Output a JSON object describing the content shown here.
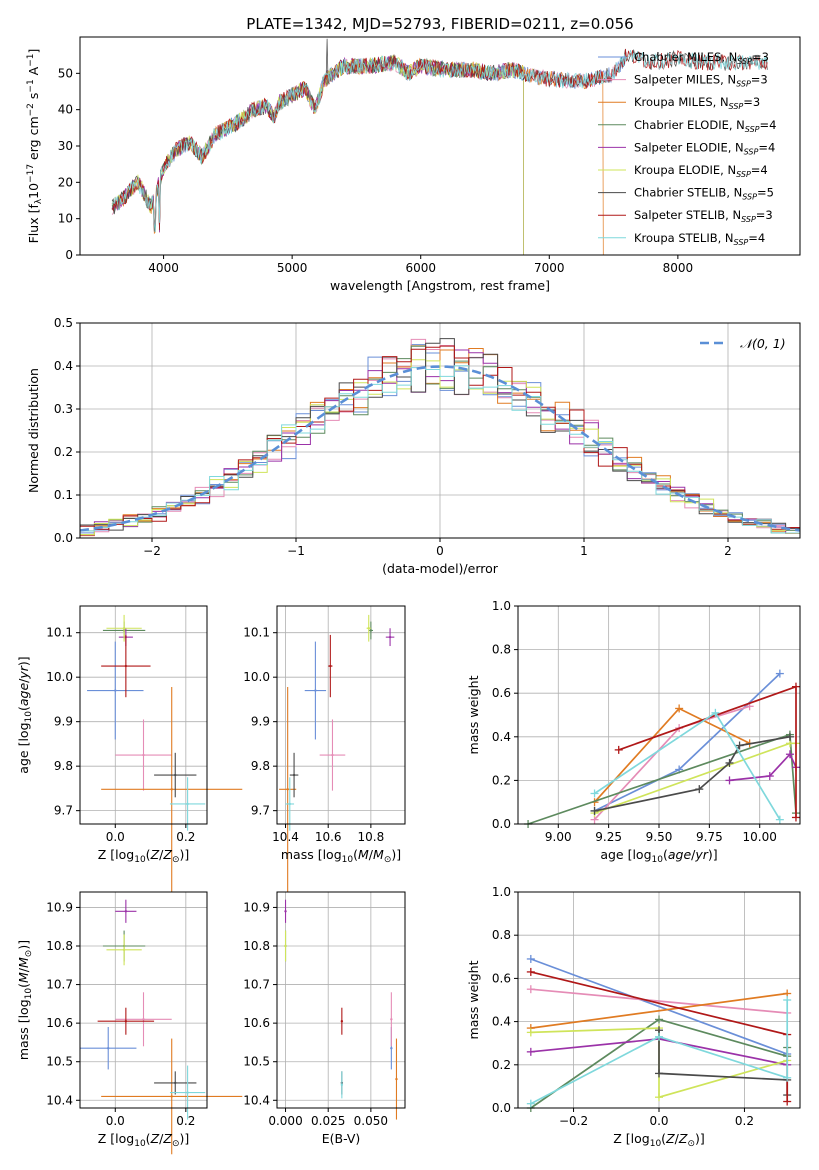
{
  "title": "PLATE=1342, MJD=52793, FIBERID=0211, z=0.056",
  "colors": {
    "chabrier_miles": "#6a8fd8",
    "salpeter_miles": "#e58cb6",
    "kroupa_miles": "#e07b22",
    "chabrier_elodie": "#5d8a5e",
    "salpeter_elodie": "#9b32a8",
    "kroupa_elodie": "#cfe45a",
    "chabrier_stelib": "#4a4a4a",
    "salpeter_stelib": "#b01818",
    "kroupa_stelib": "#7fd8dc"
  },
  "chart_data": [
    {
      "id": "spectrum",
      "type": "line",
      "xlabel": "wavelength [Angstrom, rest frame]",
      "ylabel": "Flux [f_λ10^-17 erg cm^-2 s^-1 A^-1]",
      "xlim": [
        3350,
        8950
      ],
      "ylim": [
        0,
        60
      ],
      "xticks": [
        "4000",
        "5000",
        "6000",
        "7000",
        "8000"
      ],
      "yticks": [
        "0",
        "10",
        "20",
        "30",
        "40",
        "50"
      ],
      "legend_position": "right",
      "series": [
        {
          "name": "Chabrier MILES, N_SSP=3",
          "color": "#6a8fd8",
          "x_range": [
            3600,
            7600
          ]
        },
        {
          "name": "Salpeter MILES, N_SSP=3",
          "color": "#e58cb6",
          "x_range": [
            3600,
            7600
          ]
        },
        {
          "name": "Kroupa MILES, N_SSP=3",
          "color": "#e07b22",
          "x_range": [
            3600,
            7420
          ]
        },
        {
          "name": "Chabrier ELODIE, N_SSP=4",
          "color": "#5d8a5e",
          "x_range": [
            3600,
            6800
          ]
        },
        {
          "name": "Salpeter ELODIE, N_SSP=4",
          "color": "#9b32a8",
          "x_range": [
            3600,
            6800
          ]
        },
        {
          "name": "Kroupa ELODIE, N_SSP=4",
          "color": "#cfe45a",
          "x_range": [
            3600,
            6800
          ]
        },
        {
          "name": "Chabrier STELIB, N_SSP=5",
          "color": "#4a4a4a",
          "x_range": [
            3600,
            8700
          ]
        },
        {
          "name": "Salpeter STELIB, N_SSP=3",
          "color": "#b01818",
          "x_range": [
            3600,
            8700
          ]
        },
        {
          "name": "Kroupa STELIB, N_SSP=4",
          "color": "#7fd8dc",
          "x_range": [
            3600,
            8700
          ]
        }
      ],
      "continuum": [
        [
          3600,
          13
        ],
        [
          3700,
          16
        ],
        [
          3800,
          20
        ],
        [
          3850,
          17
        ],
        [
          3900,
          13
        ],
        [
          3950,
          18
        ],
        [
          4000,
          24
        ],
        [
          4100,
          29
        ],
        [
          4200,
          31
        ],
        [
          4300,
          27
        ],
        [
          4400,
          33
        ],
        [
          4500,
          35
        ],
        [
          4600,
          37
        ],
        [
          4700,
          40
        ],
        [
          4800,
          41
        ],
        [
          4860,
          38
        ],
        [
          4900,
          42
        ],
        [
          5000,
          44
        ],
        [
          5100,
          46
        ],
        [
          5180,
          40
        ],
        [
          5250,
          48
        ],
        [
          5400,
          52
        ],
        [
          5600,
          52
        ],
        [
          5800,
          53
        ],
        [
          5900,
          50
        ],
        [
          6000,
          52
        ],
        [
          6200,
          51
        ],
        [
          6400,
          51
        ],
        [
          6560,
          50
        ],
        [
          6700,
          51
        ],
        [
          6900,
          49
        ],
        [
          7100,
          48
        ],
        [
          7300,
          48
        ],
        [
          7500,
          50
        ],
        [
          7600,
          55
        ],
        [
          7800,
          53
        ],
        [
          8000,
          54
        ],
        [
          8200,
          53
        ],
        [
          8400,
          53
        ],
        [
          8600,
          53
        ],
        [
          8700,
          53
        ]
      ],
      "features": [
        {
          "x": 3933,
          "y": 5,
          "name": "Ca K dip"
        },
        {
          "x": 3968,
          "y": 7,
          "name": "Ca H dip"
        },
        {
          "x": 5270,
          "y": 62,
          "name": "spike"
        },
        {
          "x": 6800,
          "y": 0,
          "name": "ELODIE cutoff"
        },
        {
          "x": 7420,
          "y": 0,
          "name": "Kroupa MILES cutoff"
        }
      ]
    },
    {
      "id": "residual_histogram",
      "type": "histogram",
      "xlabel": "(data-model)/error",
      "ylabel": "Normed distribution",
      "xlim": [
        -2.5,
        2.5
      ],
      "ylim": [
        0,
        0.5
      ],
      "xticks": [
        "−2",
        "−1",
        "0",
        "1",
        "2"
      ],
      "yticks": [
        "0.0",
        "0.1",
        "0.2",
        "0.3",
        "0.4",
        "0.5"
      ],
      "bin_width": 0.1,
      "reference_curve": "N(0,1)",
      "legend": "𝒩(0, 1)",
      "legend_position": "top-right"
    },
    {
      "id": "age_vs_Z",
      "type": "errorbar",
      "xlabel": "Z [log10(Z/Z⊙)]",
      "ylabel": "age [log10(age/yr)]",
      "xlim": [
        -0.1,
        0.26
      ],
      "ylim": [
        9.67,
        10.16
      ],
      "xticks": [
        "0.0",
        "0.2"
      ],
      "yticks": [
        "9.7",
        "9.8",
        "9.9",
        "10.0",
        "10.1"
      ],
      "points": [
        {
          "series": "Chabrier MILES",
          "x": 0.0,
          "xerr": 0.08,
          "y": 9.97,
          "yerr": 0.11
        },
        {
          "series": "Salpeter MILES",
          "x": 0.08,
          "xerr": 0.08,
          "y": 9.825,
          "yerr": 0.08
        },
        {
          "series": "Kroupa MILES",
          "x": 0.16,
          "xerr": 0.2,
          "y": 9.748,
          "yerr": 0.23
        },
        {
          "series": "Chabrier ELODIE",
          "x": 0.025,
          "xerr": 0.06,
          "y": 10.105,
          "yerr": 0.02
        },
        {
          "series": "Salpeter ELODIE",
          "x": 0.03,
          "xerr": 0.02,
          "y": 10.09,
          "yerr": 0.02
        },
        {
          "series": "Kroupa ELODIE",
          "x": 0.025,
          "xerr": 0.05,
          "y": 10.11,
          "yerr": 0.03
        },
        {
          "series": "Chabrier STELIB",
          "x": 0.17,
          "xerr": 0.06,
          "y": 9.78,
          "yerr": 0.05
        },
        {
          "series": "Salpeter STELIB",
          "x": 0.03,
          "xerr": 0.07,
          "y": 10.025,
          "yerr": 0.07
        },
        {
          "series": "Kroupa STELIB",
          "x": 0.205,
          "xerr": 0.05,
          "y": 9.715,
          "yerr": 0.06
        }
      ]
    },
    {
      "id": "age_vs_mass",
      "type": "errorbar",
      "xlabel": "mass [log10(M/M⊙)]",
      "ylabel": "",
      "xlim": [
        10.36,
        10.96
      ],
      "ylim": [
        9.67,
        10.16
      ],
      "xticks": [
        "10.4",
        "10.6",
        "10.8"
      ],
      "yticks": [
        "9.7",
        "9.8",
        "9.9",
        "10.0",
        "10.1"
      ],
      "points": [
        {
          "series": "Chabrier MILES",
          "x": 10.54,
          "xerr": 0.05,
          "y": 9.97,
          "yerr": 0.11
        },
        {
          "series": "Salpeter MILES",
          "x": 10.62,
          "xerr": 0.06,
          "y": 9.825,
          "yerr": 0.08
        },
        {
          "series": "Kroupa MILES",
          "x": 10.41,
          "xerr": 0.04,
          "y": 9.748,
          "yerr": 0.23
        },
        {
          "series": "Chabrier ELODIE",
          "x": 10.8,
          "xerr": 0.01,
          "y": 10.105,
          "yerr": 0.02
        },
        {
          "series": "Salpeter ELODIE",
          "x": 10.89,
          "xerr": 0.02,
          "y": 10.09,
          "yerr": 0.02
        },
        {
          "series": "Kroupa ELODIE",
          "x": 10.79,
          "xerr": 0.01,
          "y": 10.11,
          "yerr": 0.03
        },
        {
          "series": "Chabrier STELIB",
          "x": 10.44,
          "xerr": 0.02,
          "y": 9.78,
          "yerr": 0.05
        },
        {
          "series": "Salpeter STELIB",
          "x": 10.61,
          "xerr": 0.01,
          "y": 10.025,
          "yerr": 0.07
        },
        {
          "series": "Kroupa STELIB",
          "x": 10.42,
          "xerr": 0.02,
          "y": 9.715,
          "yerr": 0.06
        }
      ]
    },
    {
      "id": "mass_weight_vs_age",
      "type": "line",
      "xlabel": "age [log10(age/yr)]",
      "ylabel": "mass weight",
      "xlim": [
        8.8,
        10.2
      ],
      "ylim": [
        0,
        1
      ],
      "xticks": [
        "9.00",
        "9.25",
        "9.50",
        "9.75",
        "10.00"
      ],
      "yticks": [
        "0.0",
        "0.2",
        "0.4",
        "0.6",
        "0.8",
        "1.0"
      ],
      "series": [
        {
          "name": "Chabrier MILES",
          "x": [
            9.18,
            9.6,
            10.1
          ],
          "y": [
            0.06,
            0.25,
            0.69
          ]
        },
        {
          "name": "Salpeter MILES",
          "x": [
            9.18,
            9.6,
            9.95
          ],
          "y": [
            0.02,
            0.44,
            0.54
          ]
        },
        {
          "name": "Kroupa MILES",
          "x": [
            9.18,
            9.6,
            9.95
          ],
          "y": [
            0.1,
            0.53,
            0.37
          ]
        },
        {
          "name": "Chabrier ELODIE",
          "x": [
            8.85,
            10.15,
            10.18
          ],
          "y": [
            0.0,
            0.41,
            0.05
          ]
        },
        {
          "name": "Salpeter ELODIE",
          "x": [
            9.85,
            10.05,
            10.15,
            10.18
          ],
          "y": [
            0.2,
            0.22,
            0.32,
            0.26
          ]
        },
        {
          "name": "Kroupa ELODIE",
          "x": [
            9.18,
            10.15,
            10.18
          ],
          "y": [
            0.05,
            0.37,
            0.37
          ]
        },
        {
          "name": "Chabrier STELIB",
          "x": [
            9.18,
            9.7,
            9.85,
            9.9,
            10.15
          ],
          "y": [
            0.06,
            0.16,
            0.28,
            0.36,
            0.4
          ]
        },
        {
          "name": "Salpeter STELIB",
          "x": [
            9.3,
            10.18,
            10.18
          ],
          "y": [
            0.34,
            0.63,
            0.03
          ]
        },
        {
          "name": "Kroupa STELIB",
          "x": [
            9.18,
            9.78,
            10.1
          ],
          "y": [
            0.14,
            0.51,
            0.02
          ]
        }
      ]
    },
    {
      "id": "mass_vs_Z",
      "type": "errorbar",
      "xlabel": "Z [log10(Z/Z⊙)]",
      "ylabel": "mass [log10(M/M⊙)]",
      "xlim": [
        -0.1,
        0.26
      ],
      "ylim": [
        10.38,
        10.94
      ],
      "xticks": [
        "0.0",
        "0.2"
      ],
      "yticks": [
        "10.4",
        "10.5",
        "10.6",
        "10.7",
        "10.8",
        "10.9"
      ],
      "points": [
        {
          "series": "Chabrier MILES",
          "x": -0.02,
          "xerr": 0.08,
          "y": 10.535,
          "yerr": 0.055
        },
        {
          "series": "Salpeter MILES",
          "x": 0.08,
          "xerr": 0.08,
          "y": 10.61,
          "yerr": 0.07
        },
        {
          "series": "Kroupa MILES",
          "x": 0.16,
          "xerr": 0.2,
          "y": 10.41,
          "yerr": 0.15
        },
        {
          "series": "Chabrier ELODIE",
          "x": 0.025,
          "xerr": 0.06,
          "y": 10.8,
          "yerr": 0.04
        },
        {
          "series": "Salpeter ELODIE",
          "x": 0.03,
          "xerr": 0.03,
          "y": 10.89,
          "yerr": 0.03
        },
        {
          "series": "Kroupa ELODIE",
          "x": 0.025,
          "xerr": 0.05,
          "y": 10.79,
          "yerr": 0.04
        },
        {
          "series": "Chabrier STELIB",
          "x": 0.17,
          "xerr": 0.06,
          "y": 10.445,
          "yerr": 0.03
        },
        {
          "series": "Salpeter STELIB",
          "x": 0.03,
          "xerr": 0.08,
          "y": 10.605,
          "yerr": 0.035
        },
        {
          "series": "Kroupa STELIB",
          "x": 0.205,
          "xerr": 0.05,
          "y": 10.42,
          "yerr": 0.07
        }
      ]
    },
    {
      "id": "mass_vs_ebv",
      "type": "errorbar",
      "xlabel": "E(B-V)",
      "ylabel": "",
      "xlim": [
        -0.005,
        0.07
      ],
      "ylim": [
        10.38,
        10.94
      ],
      "xticks": [
        "0.000",
        "0.025",
        "0.050"
      ],
      "yticks": [
        "10.4",
        "10.5",
        "10.6",
        "10.7",
        "10.8",
        "10.9"
      ],
      "points": [
        {
          "series": "Chabrier MILES",
          "x": 0.062,
          "xerr": 0.0,
          "y": 10.535,
          "yerr": 0.055
        },
        {
          "series": "Salpeter MILES",
          "x": 0.062,
          "xerr": 0.0,
          "y": 10.61,
          "yerr": 0.07
        },
        {
          "series": "Kroupa MILES",
          "x": 0.065,
          "xerr": 0.0,
          "y": 10.455,
          "yerr": 0.105
        },
        {
          "series": "Chabrier ELODIE",
          "x": 0.0,
          "xerr": 0.0,
          "y": 10.8,
          "yerr": 0.04
        },
        {
          "series": "Salpeter ELODIE",
          "x": 0.0,
          "xerr": 0.0,
          "y": 10.89,
          "yerr": 0.03
        },
        {
          "series": "Kroupa ELODIE",
          "x": 0.0,
          "xerr": 0.0,
          "y": 10.8,
          "yerr": 0.04
        },
        {
          "series": "Chabrier STELIB",
          "x": 0.033,
          "xerr": 0.0,
          "y": 10.445,
          "yerr": 0.03
        },
        {
          "series": "Salpeter STELIB",
          "x": 0.033,
          "xerr": 0.0,
          "y": 10.605,
          "yerr": 0.035
        },
        {
          "series": "Kroupa STELIB",
          "x": 0.033,
          "xerr": 0.0,
          "y": 10.44,
          "yerr": 0.035
        }
      ]
    },
    {
      "id": "mass_weight_vs_Z",
      "type": "line",
      "xlabel": "Z [log10(Z/Z⊙)]",
      "ylabel": "mass weight",
      "xlim": [
        -0.33,
        0.33
      ],
      "ylim": [
        0,
        1
      ],
      "xticks": [
        "−0.2",
        "0.0",
        "0.2"
      ],
      "yticks": [
        "0.0",
        "0.2",
        "0.4",
        "0.6",
        "0.8",
        "1.0"
      ],
      "series": [
        {
          "name": "Chabrier MILES",
          "x": [
            -0.3,
            0.3
          ],
          "y": [
            0.69,
            0.25
          ]
        },
        {
          "name": "Salpeter MILES",
          "x": [
            -0.3,
            0.3
          ],
          "y": [
            0.55,
            0.44
          ]
        },
        {
          "name": "Kroupa MILES",
          "x": [
            -0.3,
            0.3
          ],
          "y": [
            0.37,
            0.53
          ]
        },
        {
          "name": "Chabrier ELODIE",
          "x": [
            -0.3,
            0.0,
            0.3,
            0.3
          ],
          "y": [
            0.0,
            0.41,
            0.24,
            0.28
          ]
        },
        {
          "name": "Salpeter ELODIE",
          "x": [
            -0.3,
            0.0,
            0.3
          ],
          "y": [
            0.26,
            0.32,
            0.2
          ]
        },
        {
          "name": "Kroupa ELODIE",
          "x": [
            -0.3,
            0.0,
            0.0,
            0.3
          ],
          "y": [
            0.35,
            0.37,
            0.05,
            0.22
          ]
        },
        {
          "name": "Chabrier STELIB",
          "x": [
            0.0,
            0.0,
            0.3,
            0.3
          ],
          "y": [
            0.36,
            0.16,
            0.13,
            0.06
          ]
        },
        {
          "name": "Salpeter STELIB",
          "x": [
            -0.3,
            0.3,
            0.3
          ],
          "y": [
            0.63,
            0.34,
            0.03
          ]
        },
        {
          "name": "Kroupa STELIB",
          "x": [
            -0.3,
            0.0,
            0.3,
            0.3
          ],
          "y": [
            0.02,
            0.33,
            0.14,
            0.5
          ]
        }
      ]
    }
  ]
}
